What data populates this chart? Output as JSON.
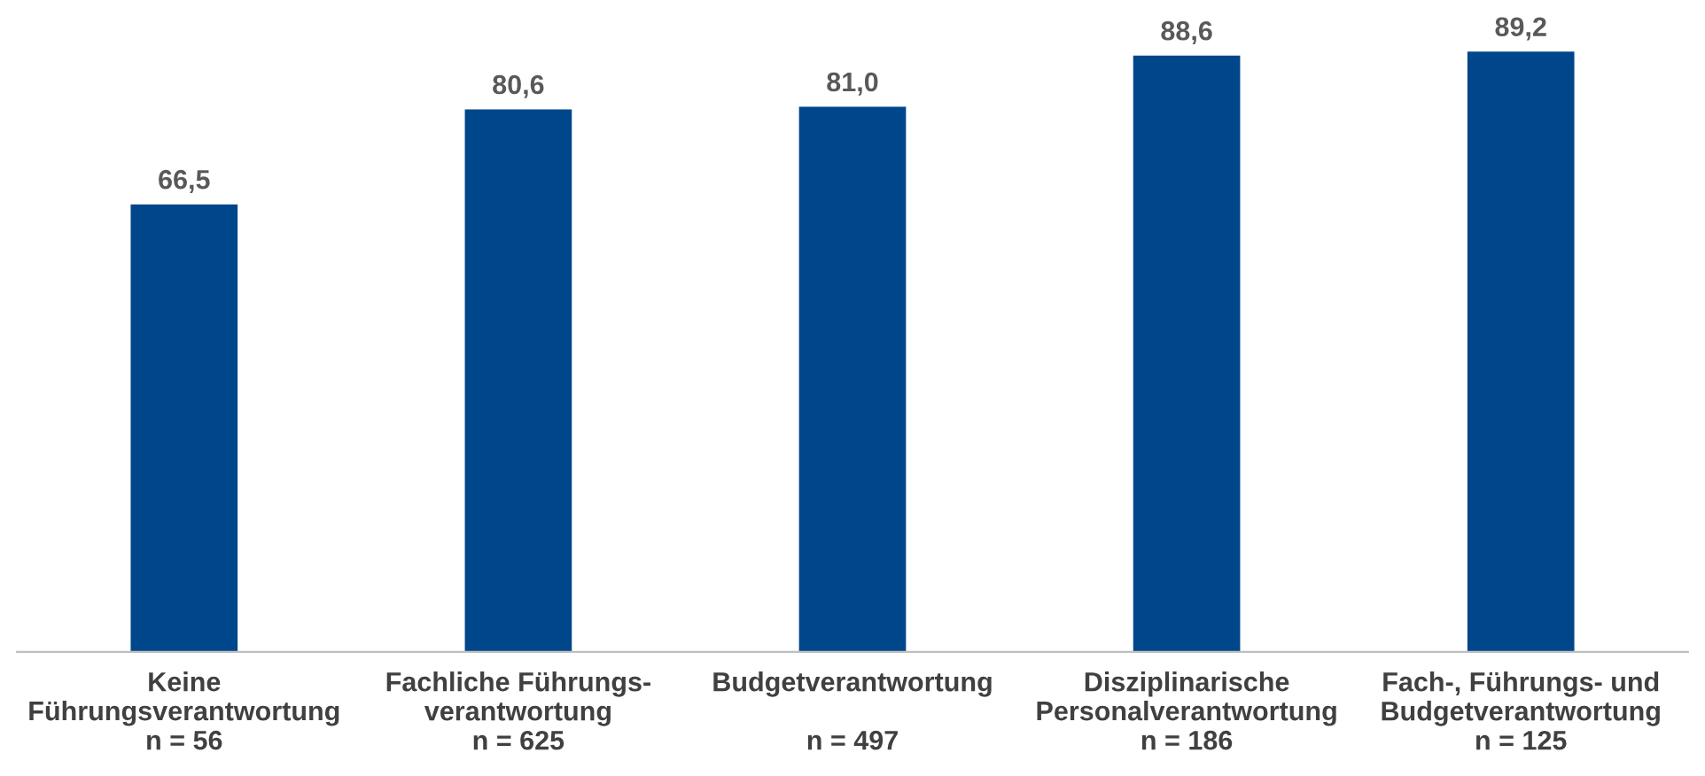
{
  "chart_data": {
    "type": "bar",
    "categories": [
      "Keine\nFührungsverantwortung\nn = 56",
      "Fachliche Führungs-\nverantwortung\nn = 625",
      "Budgetverantwortung\n\nn = 497",
      "Disziplinarische\nPersonalverantwortung\nn = 186",
      "Fach-, Führungs- und\nBudgetverantwortung\nn = 125"
    ],
    "values": [
      66.5,
      80.6,
      81.0,
      88.6,
      89.2
    ],
    "value_labels": [
      "66,5",
      "80,6",
      "81,0",
      "88,6",
      "89,2"
    ],
    "color": "#00468b",
    "grid": false,
    "legend": false,
    "tick_labels": "x"
  }
}
